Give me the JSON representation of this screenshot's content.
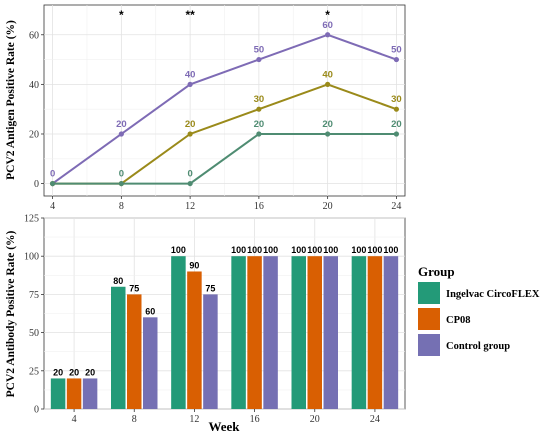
{
  "chart_data": [
    {
      "type": "line",
      "ylabel": "PCV2 Antigen Positive Rate (%)",
      "x": [
        4,
        8,
        12,
        16,
        20,
        24
      ],
      "xticks": [
        "4",
        "8",
        "12",
        "16",
        "20",
        "24"
      ],
      "yticks": [
        "0",
        "20",
        "40",
        "60"
      ],
      "xlim": [
        3.5,
        24.5
      ],
      "ylim": [
        -5,
        72
      ],
      "grid": true,
      "series": [
        {
          "values": [
            0,
            20,
            40,
            50,
            60,
            50
          ],
          "labels": [
            "0",
            "20",
            "40",
            "50",
            "60",
            "50"
          ],
          "color": "#7e6bb5"
        },
        {
          "values": [
            0,
            0,
            20,
            30,
            40,
            30
          ],
          "labels": [
            "",
            "",
            "20",
            "30",
            "40",
            "30"
          ],
          "color": "#9a8a1a"
        },
        {
          "values": [
            0,
            0,
            0,
            20,
            20,
            20
          ],
          "labels": [
            "",
            "0",
            "0",
            "20",
            "20",
            "20"
          ],
          "color": "#4f8c72"
        }
      ],
      "significance": [
        {
          "x": 8,
          "text": "*"
        },
        {
          "x": 12,
          "text": "**"
        },
        {
          "x": 20,
          "text": "*"
        }
      ]
    },
    {
      "type": "bar",
      "xlabel": "Week",
      "ylabel": "PCV2 Antibody Positive Rate (%)",
      "categories": [
        "4",
        "8",
        "12",
        "16",
        "20",
        "24"
      ],
      "yticks": [
        "0",
        "25",
        "50",
        "75",
        "100",
        "125"
      ],
      "ylim": [
        0,
        125
      ],
      "grid": true,
      "legend": {
        "title": "Group",
        "placement": "right"
      },
      "series": [
        {
          "name": "Ingelvac CircoFLEX",
          "values": [
            20,
            80,
            100,
            100,
            100,
            100
          ],
          "labels": [
            "20",
            "80",
            "100",
            "100",
            "100",
            "100"
          ],
          "color": "#239a78"
        },
        {
          "name": "CP08",
          "values": [
            20,
            75,
            90,
            100,
            100,
            100
          ],
          "labels": [
            "20",
            "75",
            "90",
            "100",
            "100",
            "100"
          ],
          "color": "#d95f02"
        },
        {
          "name": "Control group",
          "values": [
            20,
            60,
            75,
            100,
            100,
            100
          ],
          "labels": [
            "20",
            "60",
            "75",
            "100",
            "100",
            "100"
          ],
          "color": "#7570b3"
        }
      ]
    }
  ]
}
